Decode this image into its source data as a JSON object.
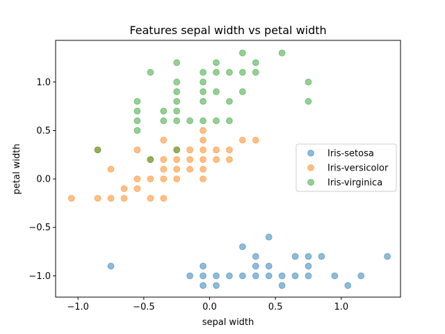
{
  "chart_data": {
    "type": "scatter",
    "title": "Features sepal width vs petal width",
    "xlabel": "sepal width",
    "ylabel": "petal width",
    "xlim": [
      -1.17,
      1.45
    ],
    "ylim": [
      -1.22,
      1.43
    ],
    "xticks": [
      -1.0,
      -0.5,
      0.0,
      0.5,
      1.0
    ],
    "xtick_labels": [
      "−1.0",
      "−0.5",
      "0.0",
      "0.5",
      "1.0"
    ],
    "yticks": [
      -1.0,
      -0.5,
      0.0,
      0.5,
      1.0
    ],
    "ytick_labels": [
      "−1.0",
      "−0.5",
      "0.0",
      "0.5",
      "1.0"
    ],
    "grid": false,
    "legend_position": "center-right",
    "series": [
      {
        "name": "Iris-setosa",
        "color": "#1f77b4",
        "points": [
          [
            -0.75,
            -0.9
          ],
          [
            -0.15,
            -1.0
          ],
          [
            -0.05,
            -0.9
          ],
          [
            -0.05,
            -1.0
          ],
          [
            -0.05,
            -1.1
          ],
          [
            0.05,
            -1.0
          ],
          [
            0.05,
            -1.1
          ],
          [
            0.15,
            -1.0
          ],
          [
            0.25,
            -0.7
          ],
          [
            0.25,
            -1.0
          ],
          [
            0.35,
            -0.8
          ],
          [
            0.35,
            -0.9
          ],
          [
            0.35,
            -1.0
          ],
          [
            0.45,
            -0.6
          ],
          [
            0.45,
            -0.9
          ],
          [
            0.45,
            -1.0
          ],
          [
            0.55,
            -1.0
          ],
          [
            0.55,
            -1.1
          ],
          [
            0.65,
            -0.8
          ],
          [
            0.65,
            -1.0
          ],
          [
            0.75,
            -0.8
          ],
          [
            0.75,
            -0.9
          ],
          [
            0.75,
            -1.0
          ],
          [
            0.85,
            -0.8
          ],
          [
            0.95,
            -1.0
          ],
          [
            1.05,
            -1.1
          ],
          [
            1.15,
            -1.0
          ],
          [
            1.35,
            -0.8
          ]
        ]
      },
      {
        "name": "Iris-versicolor",
        "color": "#ff7f0e",
        "points": [
          [
            -1.05,
            -0.2
          ],
          [
            -0.85,
            -0.2
          ],
          [
            -0.85,
            0.3
          ],
          [
            -0.75,
            0.1
          ],
          [
            -0.75,
            -0.2
          ],
          [
            -0.65,
            -0.1
          ],
          [
            -0.65,
            -0.2
          ],
          [
            -0.55,
            0.0
          ],
          [
            -0.55,
            -0.1
          ],
          [
            -0.55,
            0.3
          ],
          [
            -0.45,
            0.2
          ],
          [
            -0.45,
            0.0
          ],
          [
            -0.45,
            -0.2
          ],
          [
            -0.35,
            0.4
          ],
          [
            -0.35,
            0.2
          ],
          [
            -0.35,
            0.1
          ],
          [
            -0.35,
            0.0
          ],
          [
            -0.35,
            -0.2
          ],
          [
            -0.25,
            0.3
          ],
          [
            -0.25,
            0.2
          ],
          [
            -0.25,
            0.1
          ],
          [
            -0.25,
            0.0
          ],
          [
            -0.15,
            0.3
          ],
          [
            -0.15,
            0.2
          ],
          [
            -0.15,
            0.1
          ],
          [
            -0.05,
            0.5
          ],
          [
            -0.05,
            0.4
          ],
          [
            -0.05,
            0.3
          ],
          [
            -0.05,
            0.2
          ],
          [
            -0.05,
            0.1
          ],
          [
            -0.05,
            0.0
          ],
          [
            0.05,
            0.3
          ],
          [
            0.05,
            0.2
          ],
          [
            0.15,
            0.3
          ],
          [
            0.15,
            0.2
          ],
          [
            0.25,
            0.4
          ],
          [
            0.35,
            0.4
          ]
        ]
      },
      {
        "name": "Iris-virginica",
        "color": "#2ca02c",
        "points": [
          [
            -0.85,
            0.3
          ],
          [
            -0.55,
            0.8
          ],
          [
            -0.55,
            0.7
          ],
          [
            -0.55,
            0.6
          ],
          [
            -0.55,
            0.5
          ],
          [
            -0.45,
            1.1
          ],
          [
            -0.45,
            0.2
          ],
          [
            -0.35,
            0.7
          ],
          [
            -0.35,
            0.6
          ],
          [
            -0.25,
            1.2
          ],
          [
            -0.25,
            1.0
          ],
          [
            -0.25,
            0.9
          ],
          [
            -0.25,
            0.8
          ],
          [
            -0.25,
            0.7
          ],
          [
            -0.25,
            0.6
          ],
          [
            -0.25,
            0.3
          ],
          [
            -0.15,
            0.6
          ],
          [
            -0.05,
            1.1
          ],
          [
            -0.05,
            1.0
          ],
          [
            -0.05,
            0.9
          ],
          [
            -0.05,
            0.8
          ],
          [
            -0.05,
            0.6
          ],
          [
            0.05,
            1.2
          ],
          [
            0.05,
            1.1
          ],
          [
            0.05,
            0.9
          ],
          [
            0.05,
            0.6
          ],
          [
            0.15,
            1.1
          ],
          [
            0.15,
            0.8
          ],
          [
            0.15,
            0.6
          ],
          [
            0.25,
            1.3
          ],
          [
            0.25,
            1.1
          ],
          [
            0.25,
            0.9
          ],
          [
            0.35,
            1.2
          ],
          [
            0.35,
            1.1
          ],
          [
            0.55,
            1.3
          ],
          [
            0.75,
            1.0
          ],
          [
            0.75,
            0.8
          ]
        ]
      }
    ]
  }
}
